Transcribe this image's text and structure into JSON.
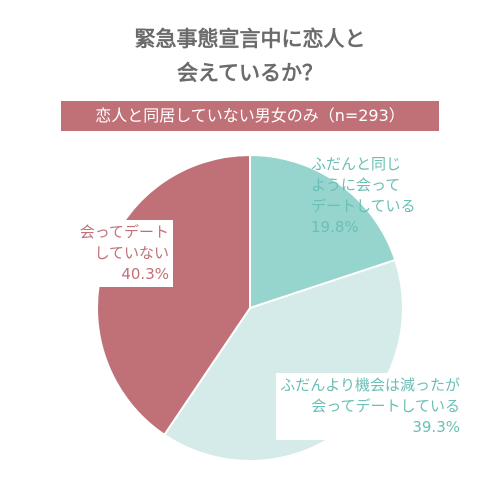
{
  "title": {
    "line1": "緊急事態宣言中に恋人と",
    "line2": "会えているか？"
  },
  "subtitle": "恋人と同居していない男女のみ（n=293）",
  "colors": {
    "slice_1": "#96d4ce",
    "slice_2": "#d4ebe9",
    "slice_3": "#c07177",
    "label_teal": "#6bbfb6",
    "label_red": "#c07177",
    "banner": "#c07177"
  },
  "chart_data": {
    "type": "pie",
    "title": "緊急事態宣言中に恋人と会えているか？",
    "subtitle": "恋人と同居していない男女のみ（n=293）",
    "slices": [
      {
        "label": "ふだんと同じように会ってデートしている",
        "value": 19.8,
        "value_label": "19.8%",
        "color": "#96d4ce"
      },
      {
        "label": "ふだんより機会は減ったが会ってデートしている",
        "value": 39.3,
        "value_label": "39.3%",
        "color": "#d4ebe9"
      },
      {
        "label": "会ってデートしていない",
        "value": 40.3,
        "value_label": "40.3%",
        "color": "#c07177"
      }
    ],
    "labels": {
      "slice_1": {
        "lines": [
          "ふだんと同じ",
          "ように会って",
          "デートしている"
        ],
        "value": "19.8%"
      },
      "slice_2": {
        "lines": [
          "ふだんより機会は減ったが",
          "会ってデートしている"
        ],
        "value": "39.3%"
      },
      "slice_3": {
        "lines": [
          "会ってデート",
          "していない"
        ],
        "value": "40.3%"
      }
    }
  }
}
